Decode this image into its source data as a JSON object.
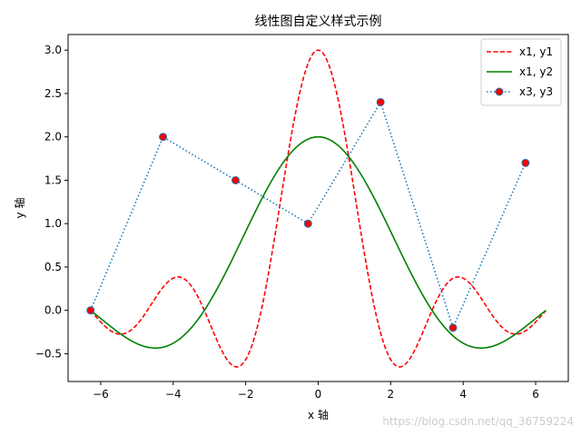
{
  "chart_data": {
    "type": "line",
    "title": "线性图自定义样式示例",
    "xlabel": "x 轴",
    "ylabel": "y 轴",
    "xlim": [
      -6.9,
      6.9
    ],
    "ylim": [
      -0.82,
      3.18
    ],
    "xticks": [
      -6,
      -4,
      -2,
      0,
      2,
      4,
      6
    ],
    "yticks": [
      -0.5,
      0.0,
      0.5,
      1.0,
      1.5,
      2.0,
      2.5,
      3.0
    ],
    "ytick_labels": [
      "−0.5",
      "0.0",
      "0.5",
      "1.0",
      "1.5",
      "2.0",
      "2.5",
      "3.0"
    ],
    "xtick_labels": [
      "−6",
      "−4",
      "−2",
      "0",
      "2",
      "4",
      "6"
    ],
    "grid": false,
    "legend_position": "top-right",
    "series": [
      {
        "name": "x1, y1",
        "style": "dashed",
        "color": "#ff0000",
        "function": "3*sin(2x)/(2x)",
        "x_range": [
          -6.283,
          6.283
        ]
      },
      {
        "name": "x1, y2",
        "style": "solid",
        "color": "#008000",
        "function": "2*sin(x)/x",
        "x_range": [
          -6.283,
          6.283
        ]
      },
      {
        "name": "x3, y3",
        "style": "dotted",
        "color": "#1f77b4",
        "marker": "circle",
        "marker_face": "#ff0000",
        "marker_edge": "#1f77b4",
        "x": [
          -6.28,
          -4.28,
          -2.28,
          -0.28,
          1.72,
          3.72,
          5.72
        ],
        "y": [
          0.0,
          2.0,
          1.5,
          1.0,
          2.4,
          -0.2,
          1.7
        ]
      }
    ]
  },
  "watermark": "https://blog.csdn.net/qq_36759224"
}
